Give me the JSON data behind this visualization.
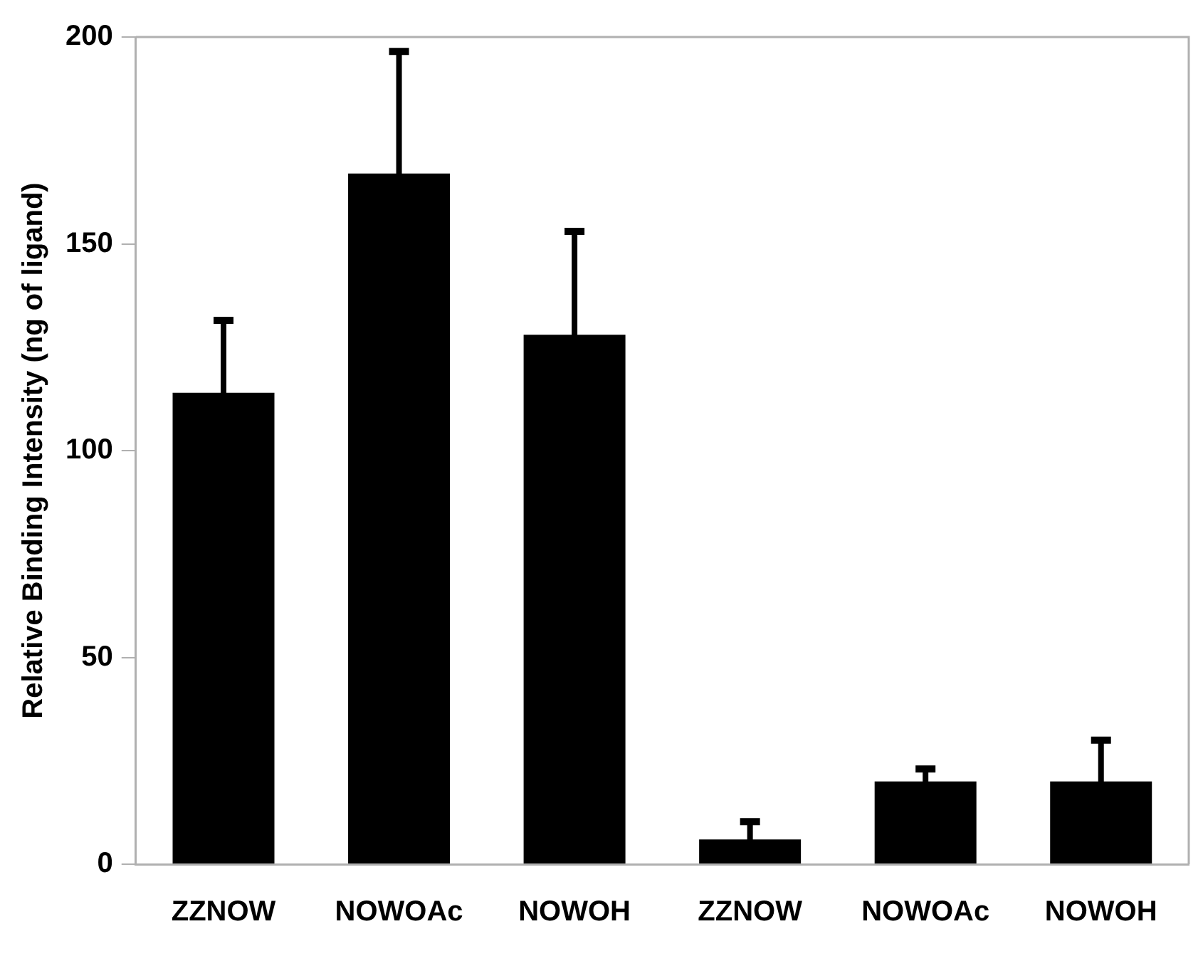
{
  "chart_data": {
    "type": "bar",
    "ylabel": "Relative Binding Intensity (ng of ligand)",
    "categories": [
      "ZZNOW",
      "NOWOAc",
      "NOWOH",
      "ZZNOW",
      "NOWOAc",
      "NOWOH"
    ],
    "values": [
      114,
      167,
      128,
      6,
      20,
      20
    ],
    "errors": [
      17.5,
      29.5,
      25,
      4.3,
      3,
      10
    ],
    "color": "#000000",
    "ylim": [
      0,
      200
    ],
    "yticks": [
      0,
      50,
      100,
      150,
      200
    ],
    "grid": false,
    "legend": false
  }
}
